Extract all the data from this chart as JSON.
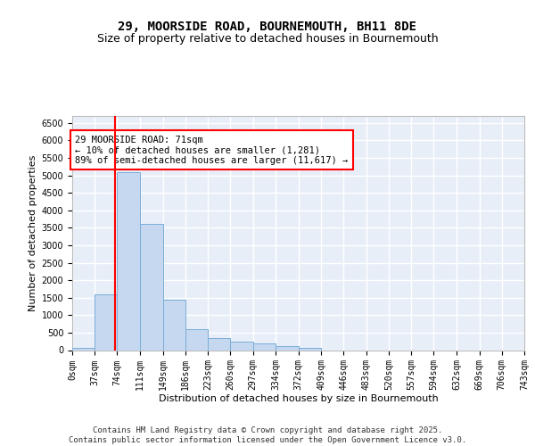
{
  "title_line1": "29, MOORSIDE ROAD, BOURNEMOUTH, BH11 8DE",
  "title_line2": "Size of property relative to detached houses in Bournemouth",
  "xlabel": "Distribution of detached houses by size in Bournemouth",
  "ylabel": "Number of detached properties",
  "bar_color": "#c5d8f0",
  "bar_edge_color": "#7aadda",
  "bg_color": "#e8eef8",
  "grid_color": "#ffffff",
  "annotation_box_text": "29 MOORSIDE ROAD: 71sqm\n← 10% of detached houses are smaller (1,281)\n89% of semi-detached houses are larger (11,617) →",
  "property_size": 71,
  "bin_edges": [
    0,
    37,
    74,
    111,
    149,
    186,
    223,
    260,
    297,
    334,
    372,
    409,
    446,
    483,
    520,
    557,
    594,
    632,
    669,
    706,
    743
  ],
  "bin_labels": [
    "0sqm",
    "37sqm",
    "74sqm",
    "111sqm",
    "149sqm",
    "186sqm",
    "223sqm",
    "260sqm",
    "297sqm",
    "334sqm",
    "372sqm",
    "409sqm",
    "446sqm",
    "483sqm",
    "520sqm",
    "557sqm",
    "594sqm",
    "632sqm",
    "669sqm",
    "706sqm",
    "743sqm"
  ],
  "bar_heights": [
    55,
    1600,
    5100,
    3600,
    1430,
    590,
    340,
    240,
    185,
    115,
    70,
    0,
    0,
    0,
    0,
    0,
    0,
    0,
    0,
    0
  ],
  "ylim": [
    0,
    6700
  ],
  "yticks": [
    0,
    500,
    1000,
    1500,
    2000,
    2500,
    3000,
    3500,
    4000,
    4500,
    5000,
    5500,
    6000,
    6500
  ],
  "footer_text": "Contains HM Land Registry data © Crown copyright and database right 2025.\nContains public sector information licensed under the Open Government Licence v3.0.",
  "title_fontsize": 10,
  "subtitle_fontsize": 9,
  "axis_label_fontsize": 8,
  "tick_fontsize": 7,
  "annotation_fontsize": 7.5,
  "footer_fontsize": 6.5
}
